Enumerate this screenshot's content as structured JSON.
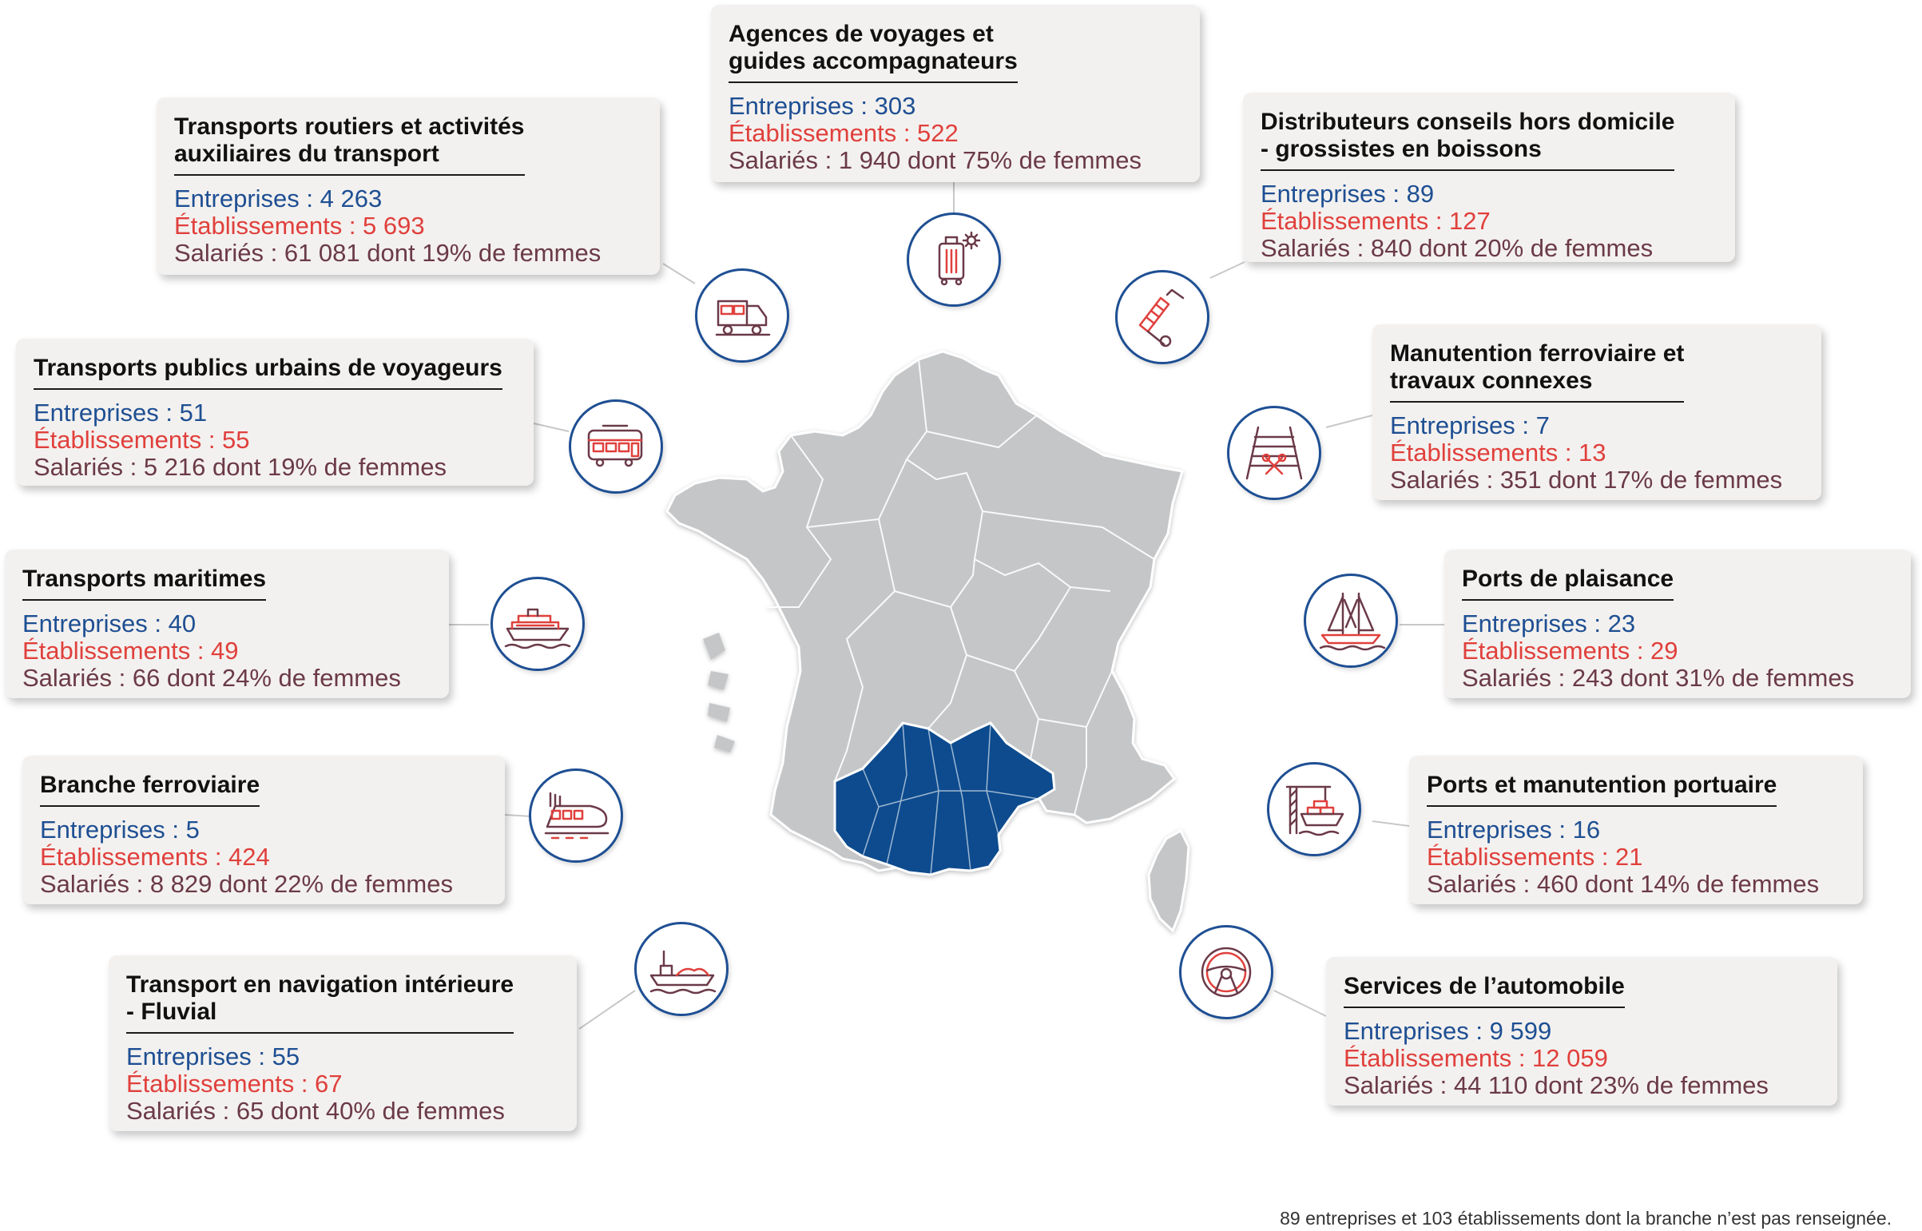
{
  "colors": {
    "accent_blue": "#1e4f93",
    "accent_red": "#e0403c",
    "accent_maroon": "#6b3a48",
    "map_grey": "#c4c6c8",
    "highlight_region": "#0d4b8e"
  },
  "highlighted_region": "Occitanie",
  "branches": [
    {
      "id": "agences",
      "title": "Agences de voyages et\nguides accompagnateurs",
      "entreprises": "Entreprises : 303",
      "etablissements": "Établissements : 522",
      "salaries": "Salariés : 1 940 dont 75% de femmes",
      "icon": "luggage-icon"
    },
    {
      "id": "routiers",
      "title": "Transports routiers et activités\nauxiliaires du transport",
      "entreprises": "Entreprises : 4 263",
      "etablissements": "Établissements : 5 693",
      "salaries": "Salariés : 61 081 dont 19% de femmes",
      "icon": "truck-icon"
    },
    {
      "id": "distributeurs",
      "title": "Distributeurs conseils hors domicile\n- grossistes en boissons",
      "entreprises": "Entreprises : 89",
      "etablissements": "Établissements : 127",
      "salaries": "Salariés : 840 dont 20% de femmes",
      "icon": "hand-truck-icon"
    },
    {
      "id": "urbains",
      "title": "Transports publics urbains de voyageurs",
      "entreprises": "Entreprises : 51",
      "etablissements": "Établissements : 55",
      "salaries": "Salariés : 5 216 dont 19% de femmes",
      "icon": "bus-icon"
    },
    {
      "id": "manutention_ferro",
      "title": "Manutention ferroviaire et\ntravaux connexes",
      "entreprises": "Entreprises : 7",
      "etablissements": "Établissements : 13",
      "salaries": "Salariés : 351 dont 17% de femmes",
      "icon": "railway-tools-icon"
    },
    {
      "id": "maritimes",
      "title": "Transports maritimes",
      "entreprises": "Entreprises : 40",
      "etablissements": "Établissements : 49",
      "salaries": "Salariés : 66 dont 24% de femmes",
      "icon": "ship-icon"
    },
    {
      "id": "plaisance",
      "title": "Ports de plaisance",
      "entreprises": "Entreprises : 23",
      "etablissements": "Établissements : 29",
      "salaries": "Salariés : 243 dont 31% de femmes",
      "icon": "sailboat-icon"
    },
    {
      "id": "ferroviaire",
      "title": "Branche ferroviaire",
      "entreprises": "Entreprises : 5",
      "etablissements": "Établissements : 424",
      "salaries": "Salariés : 8 829 dont 22% de femmes",
      "icon": "train-icon"
    },
    {
      "id": "portuaire",
      "title": "Ports et manutention portuaire",
      "entreprises": "Entreprises : 16",
      "etablissements": "Établissements : 21",
      "salaries": "Salariés : 460 dont 14% de femmes",
      "icon": "port-crane-icon"
    },
    {
      "id": "fluvial",
      "title": "Transport en navigation intérieure\n- Fluvial",
      "entreprises": "Entreprises : 55",
      "etablissements": "Établissements : 67",
      "salaries": "Salariés : 65 dont 40% de femmes",
      "icon": "barge-icon"
    },
    {
      "id": "automobile",
      "title": "Services de l’automobile",
      "entreprises": "Entreprises : 9 599",
      "etablissements": "Établissements : 12 059",
      "salaries": "Salariés : 44 110 dont 23% de femmes",
      "icon": "steering-wheel-icon"
    }
  ],
  "footnote": "89 entreprises et 103 établissements dont la branche n’est pas renseignée."
}
